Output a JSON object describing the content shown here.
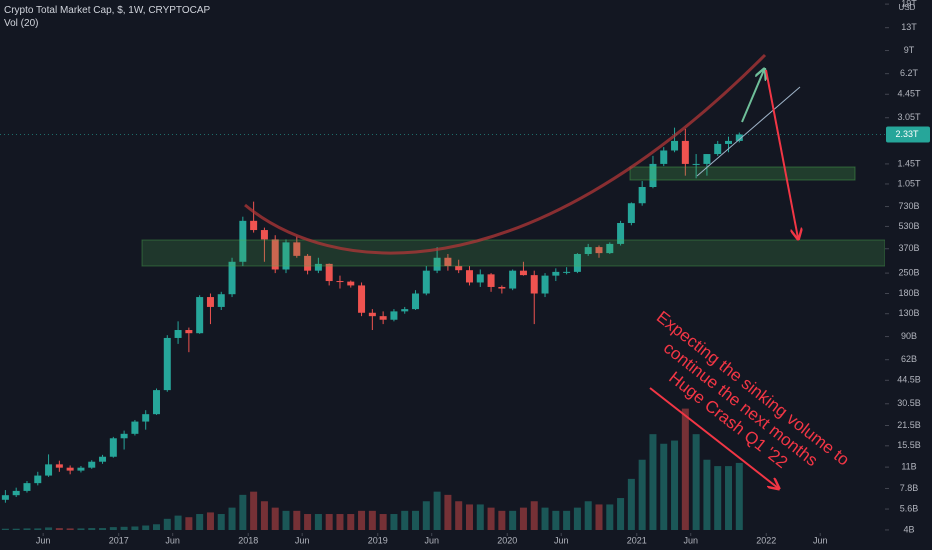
{
  "chart_data": {
    "type": "candlestick",
    "title": "Crypto Total Market Cap, $, 1W, CRYPTOCAP",
    "subtitle": "Vol (20)",
    "currency": "USD",
    "last_price_label": "2.33T",
    "log_scale": true,
    "grid": false,
    "up_color": "#26a69a",
    "down_color": "#ef5350",
    "xlim": [
      "2016-02",
      "2022-12"
    ],
    "xticks": [
      {
        "value": "2016-06",
        "label": "Jun"
      },
      {
        "value": "2017-01",
        "label": "2017"
      },
      {
        "value": "2017-06",
        "label": "Jun"
      },
      {
        "value": "2018-01",
        "label": "2018"
      },
      {
        "value": "2018-06",
        "label": "Jun"
      },
      {
        "value": "2019-01",
        "label": "2019"
      },
      {
        "value": "2019-06",
        "label": "Jun"
      },
      {
        "value": "2020-01",
        "label": "2020"
      },
      {
        "value": "2020-06",
        "label": "Jun"
      },
      {
        "value": "2021-01",
        "label": "2021"
      },
      {
        "value": "2021-06",
        "label": "Jun"
      },
      {
        "value": "2022-01",
        "label": "2022"
      },
      {
        "value": "2022-06",
        "label": "Jun"
      }
    ],
    "ylim": [
      3870000000.0,
      20300000000000.0
    ],
    "yticks": [
      {
        "value": 19000000000000.0,
        "label": "19T"
      },
      {
        "value": 13000000000000.0,
        "label": "13T"
      },
      {
        "value": 9000000000000.0,
        "label": "9T"
      },
      {
        "value": 6200000000000.0,
        "label": "6.2T"
      },
      {
        "value": 4450000000000.0,
        "label": "4.45T"
      },
      {
        "value": 3050000000000.0,
        "label": "3.05T"
      },
      {
        "value": 1450000000000.0,
        "label": "1.45T"
      },
      {
        "value": 1050000000000.0,
        "label": "1.05T"
      },
      {
        "value": 730000000000.0,
        "label": "730B"
      },
      {
        "value": 530000000000.0,
        "label": "530B"
      },
      {
        "value": 370000000000.0,
        "label": "370B"
      },
      {
        "value": 250000000000.0,
        "label": "250B"
      },
      {
        "value": 180000000000.0,
        "label": "180B"
      },
      {
        "value": 130000000000.0,
        "label": "130B"
      },
      {
        "value": 90000000000.0,
        "label": "90B"
      },
      {
        "value": 62000000000.0,
        "label": "62B"
      },
      {
        "value": 44500000000.0,
        "label": "44.5B"
      },
      {
        "value": 30500000000.0,
        "label": "30.5B"
      },
      {
        "value": 21500000000.0,
        "label": "21.5B"
      },
      {
        "value": 15500000000.0,
        "label": "15.5B"
      },
      {
        "value": 11000000000.0,
        "label": "11B"
      },
      {
        "value": 7800000000.0,
        "label": "7.8B"
      },
      {
        "value": 5600000000.0,
        "label": "5.6B"
      },
      {
        "value": 4000000000.0,
        "label": "4B"
      }
    ],
    "x": [
      "2016-02",
      "2016-03",
      "2016-04",
      "2016-05",
      "2016-06",
      "2016-07",
      "2016-08",
      "2016-09",
      "2016-10",
      "2016-11",
      "2016-12",
      "2017-01",
      "2017-02",
      "2017-03",
      "2017-04",
      "2017-05",
      "2017-06",
      "2017-07",
      "2017-08",
      "2017-09",
      "2017-10",
      "2017-11",
      "2017-12",
      "2018-01",
      "2018-02",
      "2018-03",
      "2018-04",
      "2018-05",
      "2018-06",
      "2018-07",
      "2018-08",
      "2018-09",
      "2018-10",
      "2018-11",
      "2018-12",
      "2019-01",
      "2019-02",
      "2019-03",
      "2019-04",
      "2019-05",
      "2019-06",
      "2019-07",
      "2019-08",
      "2019-09",
      "2019-10",
      "2019-11",
      "2019-12",
      "2020-01",
      "2020-02",
      "2020-03",
      "2020-04",
      "2020-05",
      "2020-06",
      "2020-07",
      "2020-08",
      "2020-09",
      "2020-10",
      "2020-11",
      "2020-12",
      "2021-01",
      "2021-02",
      "2021-03",
      "2021-04",
      "2021-05",
      "2021-06",
      "2021-07",
      "2021-08",
      "2021-09",
      "2021-10"
    ],
    "open": [
      6500000000.0,
      7000000000.0,
      7500000000.0,
      8500000000.0,
      9600000000.0,
      11500000000.0,
      10900000000.0,
      10400000000.0,
      10900000000.0,
      12000000000.0,
      13000000000.0,
      17500000000.0,
      18800000000.0,
      22900000000.0,
      25800000000.0,
      38000000000.0,
      88000000000.0,
      100000000000.0,
      95000000000.0,
      170000000000.0,
      145000000000.0,
      178000000000.0,
      300000000000.0,
      580000000000.0,
      500000000000.0,
      430000000000.0,
      265000000000.0,
      410000000000.0,
      330000000000.0,
      260000000000.0,
      290000000000.0,
      220000000000.0,
      218000000000.0,
      205000000000.0,
      132000000000.0,
      125000000000.0,
      118000000000.0,
      135000000000.0,
      140000000000.0,
      180000000000.0,
      260000000000.0,
      320000000000.0,
      280000000000.0,
      262000000000.0,
      215000000000.0,
      245000000000.0,
      200000000000.0,
      195000000000.0,
      260000000000.0,
      242000000000.0,
      180000000000.0,
      240000000000.0,
      255000000000.0,
      255000000000.0,
      340000000000.0,
      380000000000.0,
      345000000000.0,
      400000000000.0,
      560000000000.0,
      770000000000.0,
      1000000000000.0,
      1450000000000.0,
      1800000000000.0,
      2100000000000.0,
      1450000000000.0,
      1450000000000.0,
      1700000000000.0,
      2000000000000.0,
      2100000000000.0
    ],
    "high": [
      7600000000.0,
      7900000000.0,
      8800000000.0,
      10200000000.0,
      13500000000.0,
      12200000000.0,
      11300000000.0,
      11200000000.0,
      12300000000.0,
      13400000000.0,
      17900000000.0,
      19800000000.0,
      23500000000.0,
      27500000000.0,
      39000000000.0,
      92000000000.0,
      115000000000.0,
      104000000000.0,
      175000000000.0,
      180000000000.0,
      185000000000.0,
      320000000000.0,
      620000000000.0,
      790000000000.0,
      520000000000.0,
      460000000000.0,
      430000000000.0,
      450000000000.0,
      340000000000.0,
      320000000000.0,
      292000000000.0,
      240000000000.0,
      222000000000.0,
      215000000000.0,
      140000000000.0,
      135000000000.0,
      140000000000.0,
      145000000000.0,
      190000000000.0,
      280000000000.0,
      380000000000.0,
      340000000000.0,
      310000000000.0,
      280000000000.0,
      265000000000.0,
      250000000000.0,
      205000000000.0,
      265000000000.0,
      300000000000.0,
      260000000000.0,
      250000000000.0,
      270000000000.0,
      275000000000.0,
      345000000000.0,
      400000000000.0,
      390000000000.0,
      410000000000.0,
      580000000000.0,
      780000000000.0,
      1100000000000.0,
      1650000000000.0,
      1900000000000.0,
      2600000000000.0,
      2550000000000.0,
      1700000000000.0,
      1700000000000.0,
      2100000000000.0,
      2250000000000.0,
      2400000000000.0
    ],
    "low": [
      6200000000.0,
      6800000000.0,
      7300000000.0,
      8200000000.0,
      9400000000.0,
      10200000000.0,
      9800000000.0,
      10100000000.0,
      10700000000.0,
      11600000000.0,
      12800000000.0,
      14600000000.0,
      18300000000.0,
      20100000000.0,
      25500000000.0,
      37000000000.0,
      80000000000.0,
      70000000000.0,
      94000000000.0,
      110000000000.0,
      138000000000.0,
      170000000000.0,
      280000000000.0,
      480000000000.0,
      300000000000.0,
      250000000000.0,
      250000000000.0,
      320000000000.0,
      245000000000.0,
      250000000000.0,
      205000000000.0,
      195000000000.0,
      198000000000.0,
      125000000000.0,
      100000000000.0,
      110000000000.0,
      115000000000.0,
      130000000000.0,
      138000000000.0,
      175000000000.0,
      250000000000.0,
      260000000000.0,
      250000000000.0,
      205000000000.0,
      200000000000.0,
      185000000000.0,
      180000000000.0,
      190000000000.0,
      240000000000.0,
      110000000000.0,
      170000000000.0,
      220000000000.0,
      245000000000.0,
      250000000000.0,
      330000000000.0,
      320000000000.0,
      340000000000.0,
      390000000000.0,
      540000000000.0,
      740000000000.0,
      980000000000.0,
      1400000000000.0,
      1750000000000.0,
      1200000000000.0,
      1150000000000.0,
      1200000000000.0,
      1650000000000.0,
      1750000000000.0,
      2050000000000.0
    ],
    "close": [
      7000000000.0,
      7500000000.0,
      8500000000.0,
      9600000000.0,
      11500000000.0,
      10900000000.0,
      10400000000.0,
      10900000000.0,
      12000000000.0,
      13000000000.0,
      17500000000.0,
      18800000000.0,
      22900000000.0,
      25800000000.0,
      38000000000.0,
      88000000000.0,
      100000000000.0,
      95000000000.0,
      170000000000.0,
      145000000000.0,
      178000000000.0,
      300000000000.0,
      580000000000.0,
      500000000000.0,
      430000000000.0,
      265000000000.0,
      410000000000.0,
      330000000000.0,
      260000000000.0,
      290000000000.0,
      220000000000.0,
      218000000000.0,
      205000000000.0,
      132000000000.0,
      125000000000.0,
      118000000000.0,
      135000000000.0,
      140000000000.0,
      180000000000.0,
      260000000000.0,
      320000000000.0,
      280000000000.0,
      262000000000.0,
      215000000000.0,
      245000000000.0,
      200000000000.0,
      195000000000.0,
      260000000000.0,
      242000000000.0,
      180000000000.0,
      240000000000.0,
      255000000000.0,
      255000000000.0,
      340000000000.0,
      380000000000.0,
      345000000000.0,
      400000000000.0,
      560000000000.0,
      770000000000.0,
      1000000000000.0,
      1450000000000.0,
      1800000000000.0,
      2100000000000.0,
      1450000000000.0,
      1450000000000.0,
      1700000000000.0,
      2000000000000.0,
      2100000000000.0,
      2330000000000.0
    ],
    "volume_ylim": [
      0,
      72
    ],
    "volume": [
      0.4,
      0.4,
      0.5,
      0.5,
      0.8,
      0.6,
      0.5,
      0.5,
      0.6,
      0.6,
      0.9,
      1.0,
      1.1,
      1.4,
      1.8,
      3.5,
      4.5,
      4,
      5,
      5.5,
      5,
      7,
      11,
      12,
      9,
      7,
      6,
      6,
      5,
      5,
      5,
      5,
      5,
      6,
      6,
      5,
      5,
      6,
      6,
      9,
      12,
      11,
      9,
      8,
      8,
      7,
      6,
      6,
      7,
      9,
      7,
      6,
      6,
      7,
      9,
      8,
      8,
      10,
      16,
      22,
      30,
      27,
      28,
      38,
      30,
      22,
      20,
      20,
      21
    ],
    "annotations": [
      "Expecting the sinking volume to",
      "continue the next months",
      "Huge Crash Q1 '22"
    ]
  }
}
